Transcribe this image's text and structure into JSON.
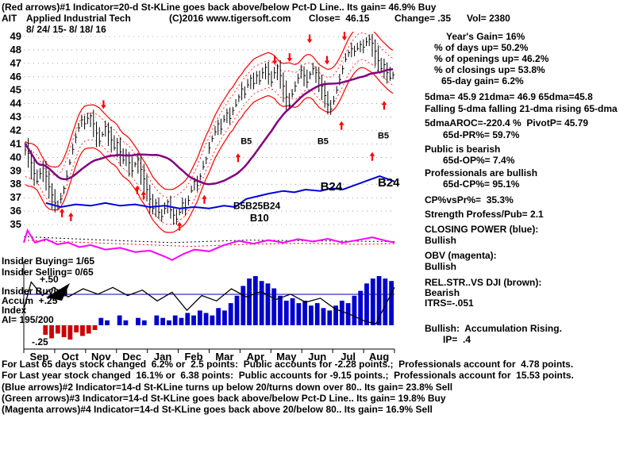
{
  "header": {
    "line1": "(Red arrows)#1 Indicator=20-d St-KLine goes back above/below Pct-D Line.. Its gain= 46.9% Buy",
    "symbol": "AIT",
    "company": "Applied Industrial Tech",
    "copyright": "(C)2016 www.tigersoft.com",
    "close": "Close=  46.15",
    "change": "Change= .35",
    "vol": "Vol= 2380",
    "date_range": "8/ 24/ 15- 8/ 18/ 16"
  },
  "stats": {
    "years_gain": "Year's Gain= 16%",
    "days_up": "% of days up= 50.2%",
    "openings_up": "% of openings up= 46.2%",
    "closings_up": "% of closings up= 53.8%",
    "gain_65d": "65-day gain= 6.2%",
    "dmas": "5dma= 45.9 21dma= 46.9 65dma=45.8",
    "dma_trend": "Falling 5-dma falling 21-dma rising 65-dma",
    "aroc_pivot": "5dmaAROC=-220.4 %  PivotP= 45.79",
    "pr65": "65d-PR%= 59.7%",
    "public_sent": "Public is bearish",
    "op65": "65d-OP%= 7.4%",
    "prof_sent": "Professionals are bullish",
    "cp65": "65d-CP%= 95.1%",
    "cp_vs_pr": "CP%vsPr%=  35.3%",
    "strength": "Strength Profess/Pub= 2.1",
    "closing_power_title": "CLOSING POWER (blue):",
    "closing_power_state": "Bullish",
    "obv_title": "OBV (magenta):",
    "obv_state": "Bullish",
    "relstr_title": "REL.STR..VS DJI (brown):",
    "relstr_state": "Bearish",
    "itrs": "ITRS=-.051",
    "accum_note": "Bullish:  Accumulation Rising.",
    "ip": "IP=  .4"
  },
  "left": {
    "insider_buying": "Insider Buying= 1/65",
    "insider_selling": "Insider Selling= 0/65",
    "plus50": "+.50",
    "accum_l1": "Insider Buying",
    "accum_l2": "Accum  +.25",
    "accum_l3": "Index",
    "ai": "AI= 195/200",
    "minus25": "-.25"
  },
  "footer": {
    "line1": "For Last 65 days stock changed  6.2% or  2.5 points:  Public accounts for -2.28 points.;  Professionals account for  4.78 points.",
    "line2": "For Last year stock changed  16.1% or  6.38 points:  Public accounts for -9.15 points.;  Professionals account for  15.53 points.",
    "line3": "(Blue arrows)#2 Indicator=14-d St-KLine turns up below 20/turns down over 80.. Its gain= 23.8% Sell",
    "line4": "(Green arrows)#3 Indicator=14-d St-KLine goes back above/below Pct-D Line.. Its gain= 19.8% Buy",
    "line5": "(Magenta arrows)#4 Indicator=14-d St-KLine goes back above 20/below 80.. Its gain= 16.9% Sell"
  },
  "chart_data": {
    "type": "line",
    "subtype": "daily OHLC stock chart with band envelope, 65-dma, Closing Power, OBV, Rel.Str. and Accumulation panels",
    "title": "AIT Applied Industrial Tech 8/24/15 - 8/18/16",
    "xlabel": "",
    "ylabel": "Price",
    "months": [
      "Sep",
      "Oct",
      "Nov",
      "Dec",
      "Jan",
      "Feb",
      "Mar",
      "Apr",
      "May",
      "Jun",
      "Jul",
      "Aug"
    ],
    "price": {
      "ylim": [
        35,
        49
      ],
      "close": [
        41.0,
        40.3,
        39.6,
        38.8,
        38.2,
        38.8,
        39.4,
        38.6,
        37.8,
        37.2,
        36.6,
        36.3,
        36.9,
        37.7,
        38.6,
        39.6,
        40.6,
        41.5,
        42.2,
        42.8,
        42.5,
        42.9,
        43.1,
        42.5,
        41.8,
        41.2,
        41.7,
        42.3,
        41.9,
        41.3,
        40.7,
        41.1,
        40.4,
        39.8,
        40.2,
        39.6,
        39.0,
        39.5,
        39.9,
        39.1,
        38.4,
        37.6,
        36.9,
        36.2,
        36.6,
        35.9,
        35.6,
        36.2,
        36.7,
        36.1,
        35.7,
        35.4,
        35.9,
        36.6,
        36.1,
        36.8,
        37.5,
        38.2,
        37.9,
        38.6,
        39.3,
        39.9,
        40.7,
        41.4,
        41.9,
        42.5,
        42.1,
        42.8,
        43.3,
        42.9,
        43.5,
        43.9,
        44.5,
        45.1,
        44.7,
        45.4,
        45.9,
        45.5,
        46.1,
        45.7,
        46.3,
        46.7,
        46.2,
        45.6,
        46.3,
        46.8,
        46.1,
        45.3,
        44.5,
        43.9,
        44.7,
        45.3,
        45.9,
        46.5,
        46.1,
        45.6,
        46.2,
        46.6,
        46.3,
        45.9,
        45.3,
        44.6,
        43.9,
        43.6,
        44.2,
        45.0,
        45.8,
        46.6,
        47.3,
        47.8,
        48.1,
        47.9,
        48.1,
        48.4,
        48.2,
        48.6,
        48.8,
        48.5,
        47.9,
        47.2,
        46.6,
        46.9,
        46.3,
        45.9,
        46.15
      ]
    },
    "closing_power": {
      "points": [
        [
          0.06,
          36.6
        ],
        [
          0.1,
          36.3
        ],
        [
          0.14,
          36.5
        ],
        [
          0.18,
          36.4
        ],
        [
          0.22,
          36.6
        ],
        [
          0.26,
          36.4
        ],
        [
          0.3,
          36.5
        ],
        [
          0.34,
          36.3
        ],
        [
          0.38,
          36.4
        ],
        [
          0.42,
          36.2
        ],
        [
          0.46,
          36.3
        ],
        [
          0.5,
          36.2
        ],
        [
          0.54,
          36.4
        ],
        [
          0.57,
          36.3
        ],
        [
          0.6,
          36.9
        ],
        [
          0.63,
          37.1
        ],
        [
          0.66,
          37.3
        ],
        [
          0.7,
          37.5
        ],
        [
          0.73,
          37.4
        ],
        [
          0.76,
          37.6
        ],
        [
          0.8,
          37.5
        ],
        [
          0.83,
          37.7
        ],
        [
          0.86,
          37.6
        ],
        [
          0.9,
          38.0
        ],
        [
          0.93,
          38.3
        ],
        [
          0.96,
          38.6
        ],
        [
          0.98,
          38.4
        ],
        [
          1,
          38.2
        ]
      ]
    },
    "obv": {
      "points": [
        [
          0,
          0.55
        ],
        [
          0.01,
          0.9
        ],
        [
          0.03,
          0.55
        ],
        [
          0.06,
          0.65
        ],
        [
          0.09,
          0.5
        ],
        [
          0.12,
          0.55
        ],
        [
          0.15,
          0.42
        ],
        [
          0.18,
          0.48
        ],
        [
          0.22,
          0.35
        ],
        [
          0.26,
          0.4
        ],
        [
          0.3,
          0.28
        ],
        [
          0.34,
          0.32
        ],
        [
          0.38,
          0.15
        ],
        [
          0.4,
          0.05
        ],
        [
          0.43,
          0.22
        ],
        [
          0.46,
          0.35
        ],
        [
          0.5,
          0.3
        ],
        [
          0.54,
          0.48
        ],
        [
          0.58,
          0.6
        ],
        [
          0.62,
          0.52
        ],
        [
          0.66,
          0.62
        ],
        [
          0.7,
          0.55
        ],
        [
          0.74,
          0.65
        ],
        [
          0.78,
          0.58
        ],
        [
          0.82,
          0.66
        ],
        [
          0.86,
          0.55
        ],
        [
          0.9,
          0.62
        ],
        [
          0.94,
          0.7
        ],
        [
          0.97,
          0.62
        ],
        [
          1,
          0.55
        ]
      ],
      "red_ref": [
        [
          0,
          0.62
        ],
        [
          0.15,
          0.56
        ],
        [
          0.3,
          0.5
        ],
        [
          0.45,
          0.44
        ],
        [
          0.6,
          0.5
        ],
        [
          0.75,
          0.53
        ],
        [
          0.9,
          0.5
        ],
        [
          1,
          0.52
        ]
      ],
      "black_ref": [
        [
          0,
          0.72
        ],
        [
          0.2,
          0.63
        ],
        [
          0.4,
          0.55
        ],
        [
          0.6,
          0.62
        ],
        [
          0.8,
          0.6
        ],
        [
          1,
          0.58
        ]
      ]
    },
    "relstr": {
      "points": [
        [
          0,
          0.3
        ],
        [
          0.02,
          0.7
        ],
        [
          0.05,
          0.5
        ],
        [
          0.08,
          0.62
        ],
        [
          0.12,
          0.48
        ],
        [
          0.16,
          0.6
        ],
        [
          0.2,
          0.52
        ],
        [
          0.24,
          0.62
        ],
        [
          0.28,
          0.5
        ],
        [
          0.32,
          0.58
        ],
        [
          0.36,
          0.42
        ],
        [
          0.4,
          0.55
        ],
        [
          0.44,
          0.28
        ],
        [
          0.48,
          0.5
        ],
        [
          0.52,
          0.42
        ],
        [
          0.56,
          0.6
        ],
        [
          0.6,
          0.48
        ],
        [
          0.64,
          0.56
        ],
        [
          0.68,
          0.44
        ],
        [
          0.72,
          0.52
        ],
        [
          0.76,
          0.4
        ],
        [
          0.8,
          0.46
        ],
        [
          0.84,
          0.3
        ],
        [
          0.88,
          0.22
        ],
        [
          0.92,
          0.12
        ],
        [
          0.95,
          0.08
        ],
        [
          0.97,
          0.3
        ],
        [
          1,
          0.62
        ]
      ]
    },
    "accum": {
      "bars": [
        0,
        0,
        0,
        -0.4,
        -0.55,
        -0.35,
        -0.5,
        -0.6,
        -0.3,
        -0.45,
        -0.35,
        -0.2,
        0.15,
        0.1,
        0,
        0.2,
        0.1,
        0,
        0.15,
        0.1,
        0,
        0.2,
        0.15,
        0.1,
        0.2,
        0.15,
        0.25,
        0.2,
        0.3,
        0.25,
        0.2,
        0.35,
        0.3,
        0.45,
        0.6,
        0.8,
        0.95,
        1.0,
        0.9,
        0.85,
        0.75,
        0.6,
        0.5,
        0.55,
        0.45,
        0.5,
        0.4,
        0.45,
        0.35,
        0.3,
        0.4,
        0.5,
        0.45,
        0.6,
        0.7,
        0.85,
        0.95,
        1.0,
        0.95,
        0.9
      ]
    },
    "arrows": {
      "up": [
        [
          0.103,
          36.2
        ],
        [
          0.127,
          35.9
        ],
        [
          0.306,
          37.9
        ],
        [
          0.323,
          37.5
        ],
        [
          0.42,
          35.2
        ],
        [
          0.487,
          37.2
        ],
        [
          0.578,
          40.3
        ],
        [
          0.857,
          42.7
        ],
        [
          0.94,
          40.4
        ],
        [
          0.972,
          44.2
        ]
      ],
      "down": [
        [
          0.215,
          43.6
        ],
        [
          0.677,
          46.9
        ],
        [
          0.717,
          47.1
        ],
        [
          0.771,
          48.5
        ],
        [
          0.818,
          46.9
        ],
        [
          0.865,
          48.7
        ]
      ]
    },
    "annotations": [
      {
        "x": 0.585,
        "price": 41.0,
        "text": "B5",
        "size": 11
      },
      {
        "x": 0.792,
        "price": 41.0,
        "text": "B5",
        "size": 11
      },
      {
        "x": 0.955,
        "price": 41.4,
        "text": "B5",
        "size": 11
      },
      {
        "x": 0.8,
        "price": 37.55,
        "text": "B24",
        "size": 15
      },
      {
        "x": 0.955,
        "price": 37.85,
        "text": "B24",
        "size": 15
      },
      {
        "x": 0.565,
        "price": 36.15,
        "text": "B5B25B24",
        "size": 12
      },
      {
        "x": 0.61,
        "price": 35.25,
        "text": "B10",
        "size": 13
      }
    ],
    "colors": {
      "price": "#000000",
      "band": "#ff0000",
      "ma65": "#800080",
      "closing_power": "#0000dd",
      "obv": "#ff00ff",
      "relstr": "#000000",
      "accum_pos": "#0000cc",
      "accum_neg": "#cc0000",
      "arrow": "#ff0000",
      "annotation": "#1a1a8c",
      "ref_line": "#0000bb"
    }
  }
}
